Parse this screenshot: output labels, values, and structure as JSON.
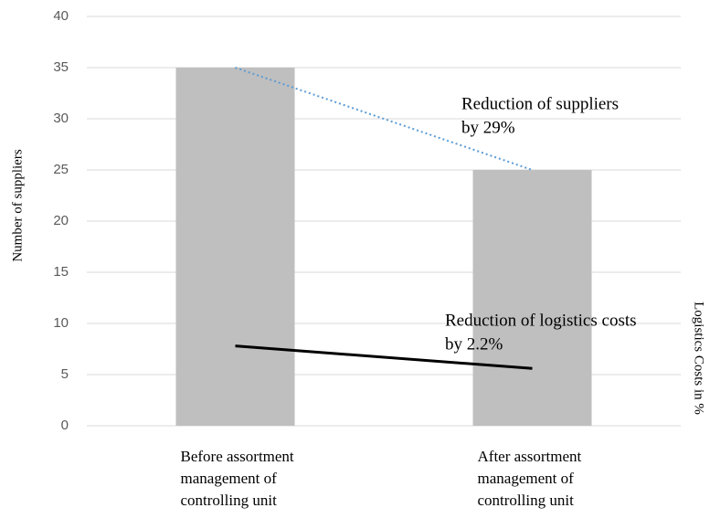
{
  "chart_data": {
    "type": "bar",
    "categories": [
      "Before assortment management of controlling unit",
      "After assortment management of controlling unit"
    ],
    "values": [
      35,
      25
    ],
    "color": "#bfbfbf",
    "ylim": [
      0,
      40
    ],
    "yticks": [
      0,
      5,
      10,
      15,
      20,
      25,
      30,
      35,
      40
    ],
    "grid": true,
    "y_label": "Number of suppliers",
    "y2_label": "Logistics Costs in %",
    "y2lim": [
      0,
      40
    ],
    "series": [
      {
        "color": "#5b9bd5",
        "style": "dotted",
        "values": [
          35,
          25
        ]
      },
      {
        "color": "#000000",
        "style": "solid",
        "axis": "y2",
        "values": [
          7.8,
          5.6
        ]
      }
    ],
    "annotations": [
      {
        "lines": [
          "Reduction of suppliers",
          "by 29%"
        ]
      },
      {
        "lines": [
          "Reduction of logistics costs",
          "by 2.2%"
        ]
      }
    ]
  }
}
